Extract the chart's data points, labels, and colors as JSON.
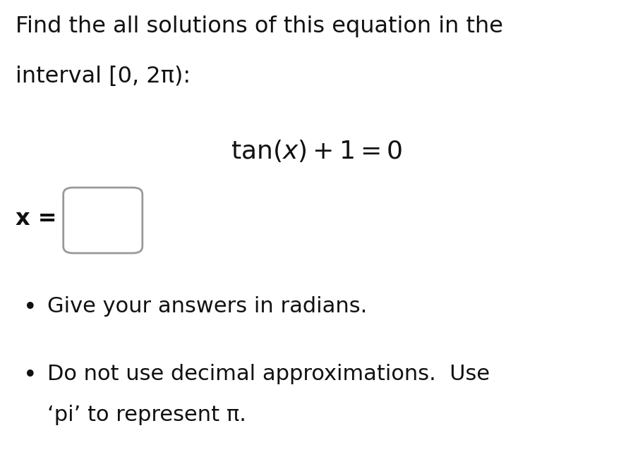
{
  "background_color": "#ffffff",
  "title_line1": "Find the all solutions of this equation in the",
  "title_line2": "interval [0, 2π):",
  "bullet1": "Give your answers in radians.",
  "bullet2_line1": "Do not use decimal approximations.  Use",
  "bullet2_line2": "‘pi’ to represent π.",
  "text_color": "#111111",
  "box_edge_color": "#999999",
  "box_fill_color": "#ffffff",
  "font_size_title": 23,
  "font_size_eq": 26,
  "font_size_xlabel": 23,
  "font_size_body": 22
}
